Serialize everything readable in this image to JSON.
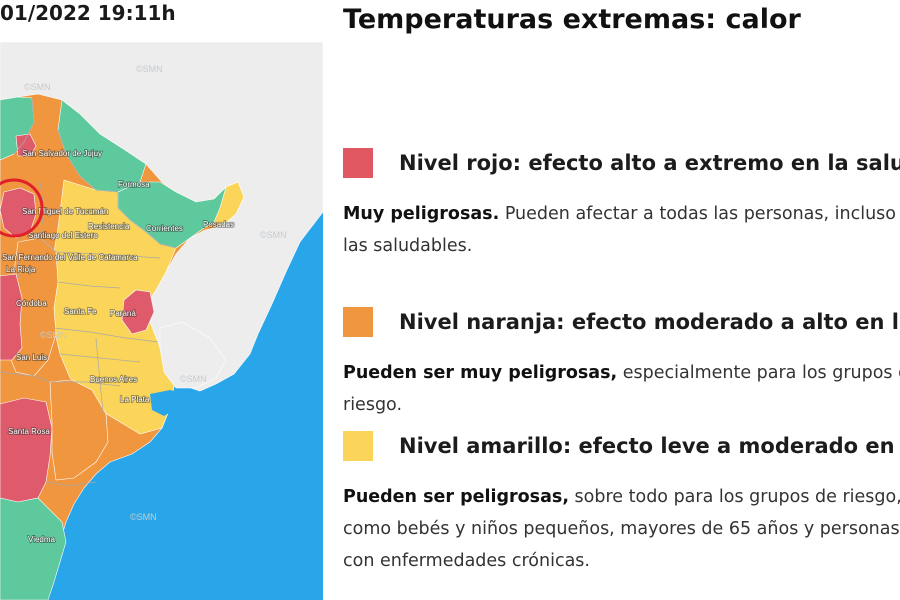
{
  "header": {
    "timestamp": "01/2022 19:11h"
  },
  "panel": {
    "title": "Temperaturas extremas: calor"
  },
  "levels": [
    {
      "color": "#e15762",
      "title": "Nivel rojo: efecto alto a extremo en la salud",
      "desc_bold": "Muy peligrosas.",
      "desc_rest": " Pueden afectar a todas las personas, incluso a las saludables."
    },
    {
      "color": "#f0963e",
      "title": "Nivel naranja: efecto moderado a alto en la salud",
      "desc_bold": "Pueden ser muy peligrosas,",
      "desc_rest": " especialmente para los grupos de riesgo."
    },
    {
      "color": "#fbd45a",
      "title": "Nivel amarillo: efecto leve a moderado en la salud",
      "desc_bold": "Pueden ser peligrosas,",
      "desc_rest": " sobre todo para los grupos de riesgo, como bebés y niños pequeños, mayores de 65 años y personas con enfermedades crónicas."
    }
  ],
  "map": {
    "colors": {
      "ocean": "#29a6e9",
      "neighbor": "#ededed",
      "border": "#a9a9a9",
      "green": "#5ec99c",
      "yellow": "#fbd45a",
      "orange": "#f0963e",
      "red": "#df5b6b",
      "circle": "#e0202a"
    },
    "labels": {
      "jujuy": "San Salvador de Jujuy",
      "formosa": "Formosa",
      "tucuman": "San Miguel de Tucumán",
      "resistencia": "Resistencia",
      "corrientes": "Corrientes",
      "posadas": "Posadas",
      "santiago": "Santiago del Estero",
      "catamarca": "San Fernando del Valle de Catamarca",
      "rioja": "La Rioja",
      "cordoba": "Córdoba",
      "santafe": "Santa Fe",
      "parana": "Paraná",
      "sanluis": "San Luis",
      "buenosaires": "Buenos Aires",
      "laplata": "La Plata",
      "santarosa": "Santa Rosa",
      "viedma": "Viedma"
    },
    "watermark": "©SMN"
  }
}
